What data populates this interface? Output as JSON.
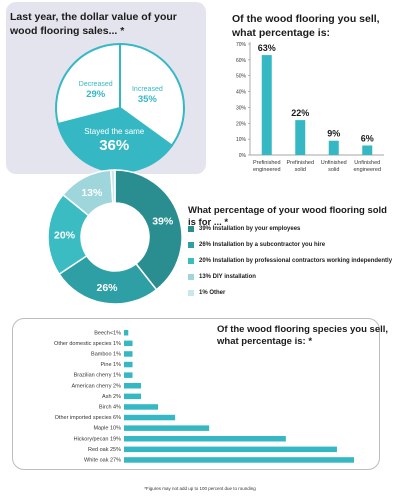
{
  "colors": {
    "teal": "#35b8c4",
    "teal_dark": "#2a8e91",
    "teal_mid": "#3bbcc2",
    "teal_light": "#9ed6dc",
    "teal_pale": "#c8e8ec",
    "panel_bg": "#e4e4ef",
    "text": "#1b1b1b"
  },
  "footnote": "*Figures may not add up to 100 percent due to rounding",
  "chart_data": [
    {
      "type": "pie",
      "title": "Last year, the dollar value of your wood flooring sales... *",
      "slices": [
        {
          "label": "Decreased",
          "value": 29,
          "value_label": "29%"
        },
        {
          "label": "Increased",
          "value": 35,
          "value_label": "35%"
        },
        {
          "label": "Stayed the same",
          "value": 36,
          "value_label": "36%"
        }
      ]
    },
    {
      "type": "bar",
      "title": "Of the wood flooring you sell, what percentage is:",
      "categories": [
        "Prefinished engineered",
        "Prefinished solid",
        "Unfinished solid",
        "Unfinished engineered"
      ],
      "category_lines": [
        [
          "Prefinished",
          "engineered"
        ],
        [
          "Prefinished",
          "solid"
        ],
        [
          "Unfinished",
          "solid"
        ],
        [
          "Unfinished",
          "engineered"
        ]
      ],
      "values": [
        63,
        22,
        9,
        6
      ],
      "value_labels": [
        "63%",
        "22%",
        "9%",
        "6%"
      ],
      "ylim": [
        0,
        70
      ],
      "yticks": [
        0,
        10,
        20,
        30,
        40,
        50,
        60,
        70
      ],
      "ytick_labels": [
        "0%",
        "10%",
        "20%",
        "30%",
        "40%",
        "50%",
        "60%",
        "70%"
      ],
      "grid": false
    },
    {
      "type": "pie",
      "subtype": "donut",
      "title": "What percentage of your wood flooring sold is for ... *",
      "slices": [
        {
          "label": "39% Installation by your employees",
          "value": 39,
          "value_label": "39%",
          "color": "#2a8e91"
        },
        {
          "label": "26% Installation by a subcontractor you hire",
          "value": 26,
          "value_label": "26%",
          "color": "#2f9fa6"
        },
        {
          "label": "20% Installation by professional contractors working independently",
          "value": 20,
          "value_label": "20%",
          "color": "#3bbcc2"
        },
        {
          "label": "13% DIY installation",
          "value": 13,
          "value_label": "13%",
          "color": "#9ed6dc"
        },
        {
          "label": "1% Other",
          "value": 1,
          "value_label": "",
          "color": "#c8e8ec"
        }
      ],
      "legend": "right"
    },
    {
      "type": "bar",
      "orientation": "horizontal",
      "title": "Of the wood flooring species you sell, what percentage is: *",
      "categories": [
        "Beech<1%",
        "Other domestic species 1%",
        "Bamboo 1%",
        "Pine 1%",
        "Brazilian cherry 1%",
        "American cherry 2%",
        "Ash 2%",
        "Birch 4%",
        "Other imported species 6%",
        "Maple 10%",
        "Hickory/pecan 19%",
        "Red oak 25%",
        "White oak 27%"
      ],
      "values": [
        0.5,
        1,
        1,
        1,
        1,
        2,
        2,
        4,
        6,
        10,
        19,
        25,
        27
      ],
      "xlim": [
        0,
        27
      ]
    }
  ]
}
